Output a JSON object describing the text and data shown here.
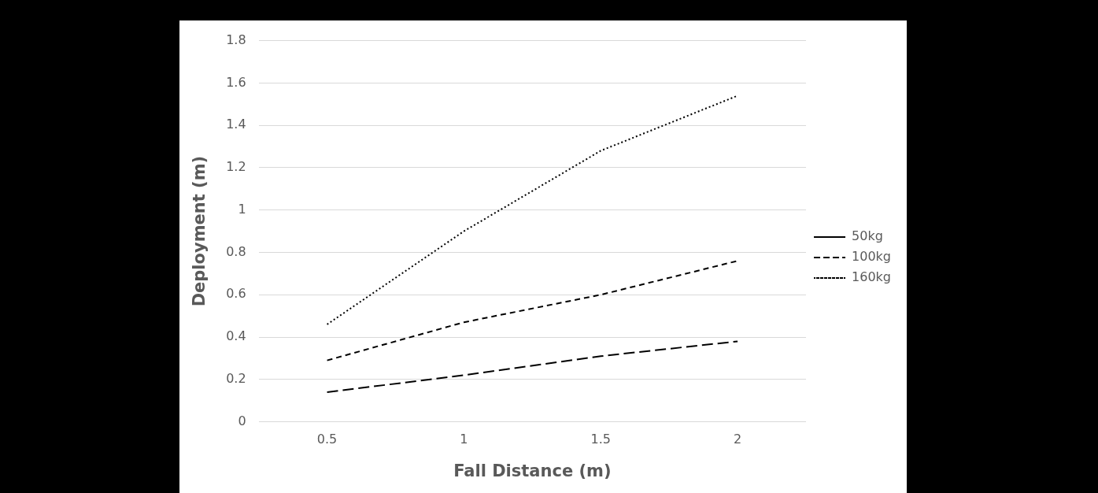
{
  "chart_data": {
    "type": "line",
    "xlabel": "Fall Distance (m)",
    "ylabel": "Deployment (m)",
    "categories": [
      "0.5",
      "1",
      "1.5",
      "2"
    ],
    "series": [
      {
        "name": "50kg",
        "color": "#000000",
        "line_style": "dashed",
        "values": [
          0.14,
          0.22,
          0.31,
          0.38
        ]
      },
      {
        "name": "100kg",
        "color": "#000000",
        "line_style": "dashed",
        "values": [
          0.29,
          0.47,
          0.6,
          0.76
        ]
      },
      {
        "name": "160kg",
        "color": "#000000",
        "line_style": "dotted",
        "values": [
          0.46,
          0.9,
          1.28,
          1.54
        ]
      }
    ],
    "ylim": [
      0,
      1.8
    ],
    "yticks": [
      0,
      0.2,
      0.4,
      0.6,
      0.8,
      1,
      1.2,
      1.4,
      1.6,
      1.8
    ],
    "grid": "y",
    "legend": "right",
    "marker": "none"
  }
}
